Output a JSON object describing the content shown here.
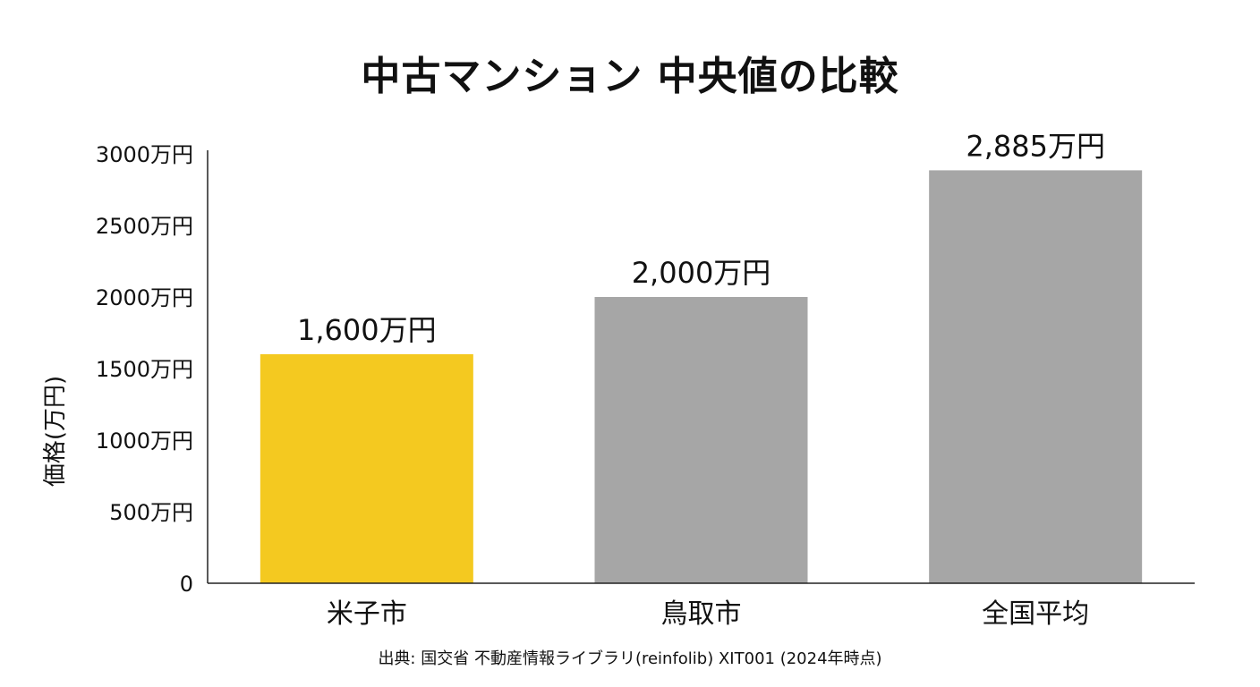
{
  "chart_data": {
    "type": "bar",
    "title": "中古マンション 中央値の比較",
    "xlabel": "",
    "ylabel": "価格(万円)",
    "ylim": [
      0,
      3000
    ],
    "yticks": [
      0,
      500,
      1000,
      1500,
      2000,
      2500,
      3000
    ],
    "ytick_labels": [
      "0",
      "500万円",
      "1000万円",
      "1500万円",
      "2000万円",
      "2500万円",
      "3000万円"
    ],
    "categories": [
      "米子市",
      "鳥取市",
      "全国平均"
    ],
    "values": [
      1600,
      2000,
      2885
    ],
    "value_labels": [
      "1,600万円",
      "2,000万円",
      "2,885万円"
    ],
    "unit": "万円",
    "colors": [
      "#F4C920",
      "#A6A6A6",
      "#A6A6A6"
    ],
    "grid": false,
    "legend": "none"
  },
  "source": "出典: 国交省 不動産情報ライブラリ(reinfolib) XIT001 (2024年時点)"
}
